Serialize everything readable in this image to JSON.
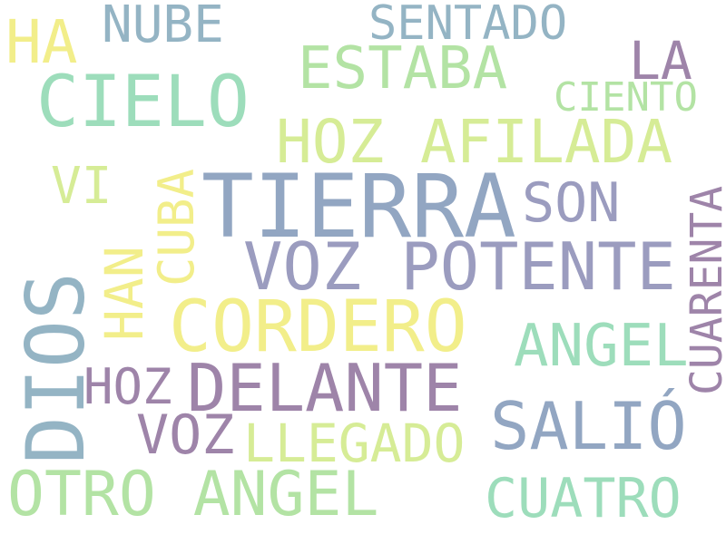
{
  "colors": {
    "yellow": "#f2ee8a",
    "light_yellow_green": "#d6ec96",
    "green": "#b3e3a4",
    "mint": "#9dddbb",
    "teal": "#8ed6bf",
    "steel_blue": "#94b4c4",
    "blue_gray": "#92a6c2",
    "lavender": "#9b9cbf",
    "purple": "#9e84a9"
  },
  "words": {
    "ha": "HA",
    "nube": "NUBE",
    "sentado": "SENTADO",
    "la": "LA",
    "estaba": "ESTABA",
    "cielo": "CIELO",
    "ciento": "CIENTO",
    "hoz_afilada": "HOZ AFILADA",
    "vi": "VI",
    "cuba": "CUBA",
    "tierra": "TIERRA",
    "son": "SON",
    "cuarenta": "CUARENTA",
    "han": "HAN",
    "voz_potente": "VOZ POTENTE",
    "dios": "DIOS",
    "cordero": "CORDERO",
    "angel": "ANGEL",
    "hoz": "HOZ",
    "delante": "DELANTE",
    "voz": "VOZ",
    "llegado": "LLEGADO",
    "salio": "SALIÓ",
    "otro_angel": "OTRO ANGEL",
    "cuatro": "CUATRO"
  }
}
